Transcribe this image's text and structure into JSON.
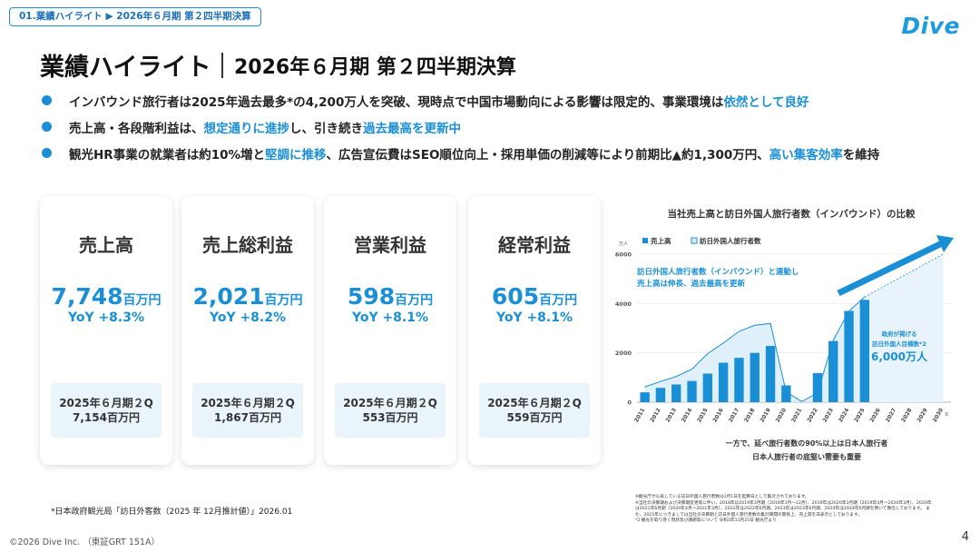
{
  "breadcrumb": "01.業績ハイライト ▶ 2026年６月期 第２四半期決算",
  "logo": "Dive",
  "title": {
    "main": "業績ハイライト",
    "sub": "2026年６月期 第２四半期決算"
  },
  "bullets": [
    {
      "parts": [
        {
          "text": "インバウンド旅行者は2025年過去最多*の4,200万人を突破、現時点で中国市場動向による影響は限定的、事業環境は",
          "hl": false
        },
        {
          "text": "依然として良好",
          "hl": true
        }
      ]
    },
    {
      "parts": [
        {
          "text": "売上高・各段階利益は、",
          "hl": false
        },
        {
          "text": "想定通りに進捗",
          "hl": true
        },
        {
          "text": "し、引き続き",
          "hl": false
        },
        {
          "text": "過去最高を更新中",
          "hl": true
        }
      ]
    },
    {
      "parts": [
        {
          "text": "観光HR事業の就業者は約10%増と",
          "hl": false
        },
        {
          "text": "堅調に推移",
          "hl": true
        },
        {
          "text": "、広告宣伝費はSEO順位向上・採用単価の削減等により前期比▲約1,300万円、",
          "hl": false
        },
        {
          "text": "高い集客効率",
          "hl": true
        },
        {
          "text": "を維持",
          "hl": false
        }
      ]
    }
  ],
  "cards": [
    {
      "name": "売上高",
      "value": "7,748",
      "unit": "百万円",
      "yoy": "YoY +8.3%",
      "prev_label": "2025年６月期２Q",
      "prev_value": "7,154百万円"
    },
    {
      "name": "売上総利益",
      "value": "2,021",
      "unit": "百万円",
      "yoy": "YoY +8.2%",
      "prev_label": "2025年６月期２Q",
      "prev_value": "1,867百万円"
    },
    {
      "name": "営業利益",
      "value": "598",
      "unit": "百万円",
      "yoy": "YoY +8.1%",
      "prev_label": "2025年６月期２Q",
      "prev_value": "553百万円"
    },
    {
      "name": "経常利益",
      "value": "605",
      "unit": "百万円",
      "yoy": "YoY +8.1%",
      "prev_label": "2025年６月期２Q",
      "prev_value": "559百万円"
    }
  ],
  "footnote_source": "*日本政府観光局「訪日外客数（2025 年 12月推計値）」2026.01",
  "copyright": "©2026 Dive Inc. （東証GRT 151A）",
  "page_number": "4",
  "notes": [
    "※観光庁が公表している訪日外国人旅行者数は1月1日を起算日として集計されております。",
    "※当社の決算期および決算期変更等に伴い、2018年は2019年3月期（2018年1月〜12月）、2019年は2020年3月期（2019年4月〜2020年3月）、2020年は2021年6月期（2020年4月〜2021年3月）、2022年は2022年6月期、2023年は2023年6月期、2024年は2024年6月期を用いて算出しております。 また、2021年につきましては当社の決算期と訪日外国人旅行者数の集計期間の関係上、売上高を非表示としております。",
    "*2 観光を取り巻く現状及び課題等について 令和3年11月25日 観光庁より"
  ],
  "chart_data": {
    "type": "bar",
    "title": "当社売上高と訪日外国人旅行者数（インバウンド）の比較",
    "ylabel": "万人",
    "ylim": [
      0,
      6000
    ],
    "yticks": [
      0,
      2000,
      4000,
      6000
    ],
    "categories": [
      "2011",
      "2012",
      "2013",
      "2014",
      "2015",
      "2016",
      "2017",
      "2018",
      "2019",
      "2020",
      "2021",
      "2022",
      "2023",
      "2024",
      "2025",
      "2026",
      "2027",
      "2028",
      "2029",
      "2030"
    ],
    "series": [
      {
        "name": "売上高",
        "kind": "bar",
        "color": "#1a8fd6",
        "values": [
          400,
          580,
          720,
          860,
          1160,
          1600,
          1800,
          2000,
          2280,
          680,
          null,
          1180,
          2480,
          3700,
          4150,
          null,
          null,
          null,
          null,
          null
        ]
      },
      {
        "name": "訪日外国人旅行者数",
        "kind": "area",
        "color": "#1a8fd6",
        "values": [
          620,
          840,
          1040,
          1340,
          1970,
          2400,
          2870,
          3120,
          3190,
          410,
          25,
          380,
          2510,
          3690,
          4270,
          null,
          null,
          null,
          null,
          null
        ]
      }
    ],
    "target": {
      "label_line1": "政府が掲げる",
      "label_line2": "訪日外国人目標数*2",
      "value_text": "6,000万人",
      "year": "2030",
      "value": 6000
    },
    "annotation_line1": "訪日外国人旅行者数（インバウンド）と連動し",
    "annotation_line2": "売上高は伸長、過去最高を更新",
    "bottom_note_line1": "一方で、延べ旅行者数の90%以上は日本人旅行者",
    "bottom_note_line2": "日本人旅行者の底堅い需要も重要",
    "x_suffix": "年",
    "legend_position": "top-left"
  }
}
